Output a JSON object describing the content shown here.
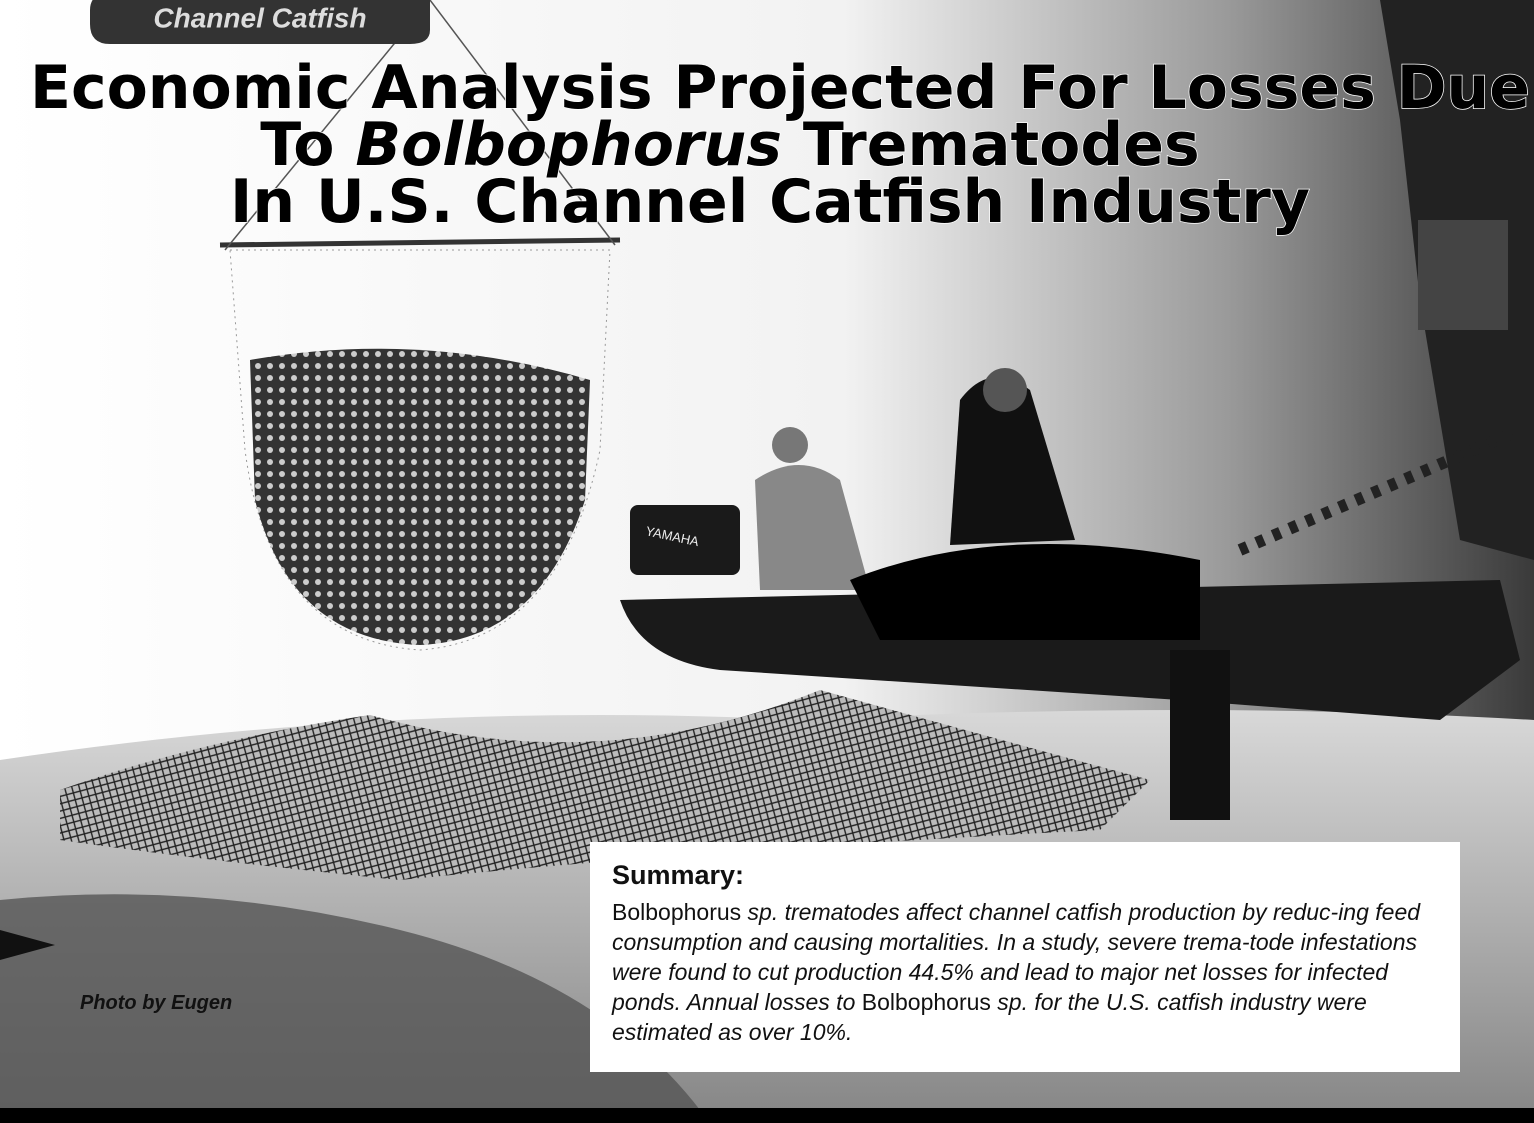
{
  "header": {
    "tab": "Channel Catfish"
  },
  "title": {
    "lines": [
      [
        {
          "text": "Economic Analysis Projected For Losses Due",
          "italic": false
        }
      ],
      [
        {
          "text": "To ",
          "italic": false
        },
        {
          "text": "Bolbophorus",
          "italic": true
        },
        {
          "text": " Trematodes",
          "italic": false
        }
      ],
      [
        {
          "text": "In U.S. Channel Catfish Industry",
          "italic": false
        }
      ]
    ]
  },
  "photo": {
    "motor_label": "YAMAHA",
    "credit": "Photo by Eugen"
  },
  "summary": {
    "heading": "Summary:",
    "runs": [
      {
        "text": "Bolbophorus",
        "italic": false
      },
      {
        "text": " sp. trematodes affect channel catfish production by reduc-ing feed consumption and causing mortalities. In a study, severe trema-tode infestations were found to cut production 44.5% and lead to major net losses for infected ponds. Annual losses to ",
        "italic": true
      },
      {
        "text": "Bolbophorus",
        "italic": false
      },
      {
        "text": " sp. for the U.S. catfish industry were estimated as over 10%.",
        "italic": true
      }
    ]
  }
}
